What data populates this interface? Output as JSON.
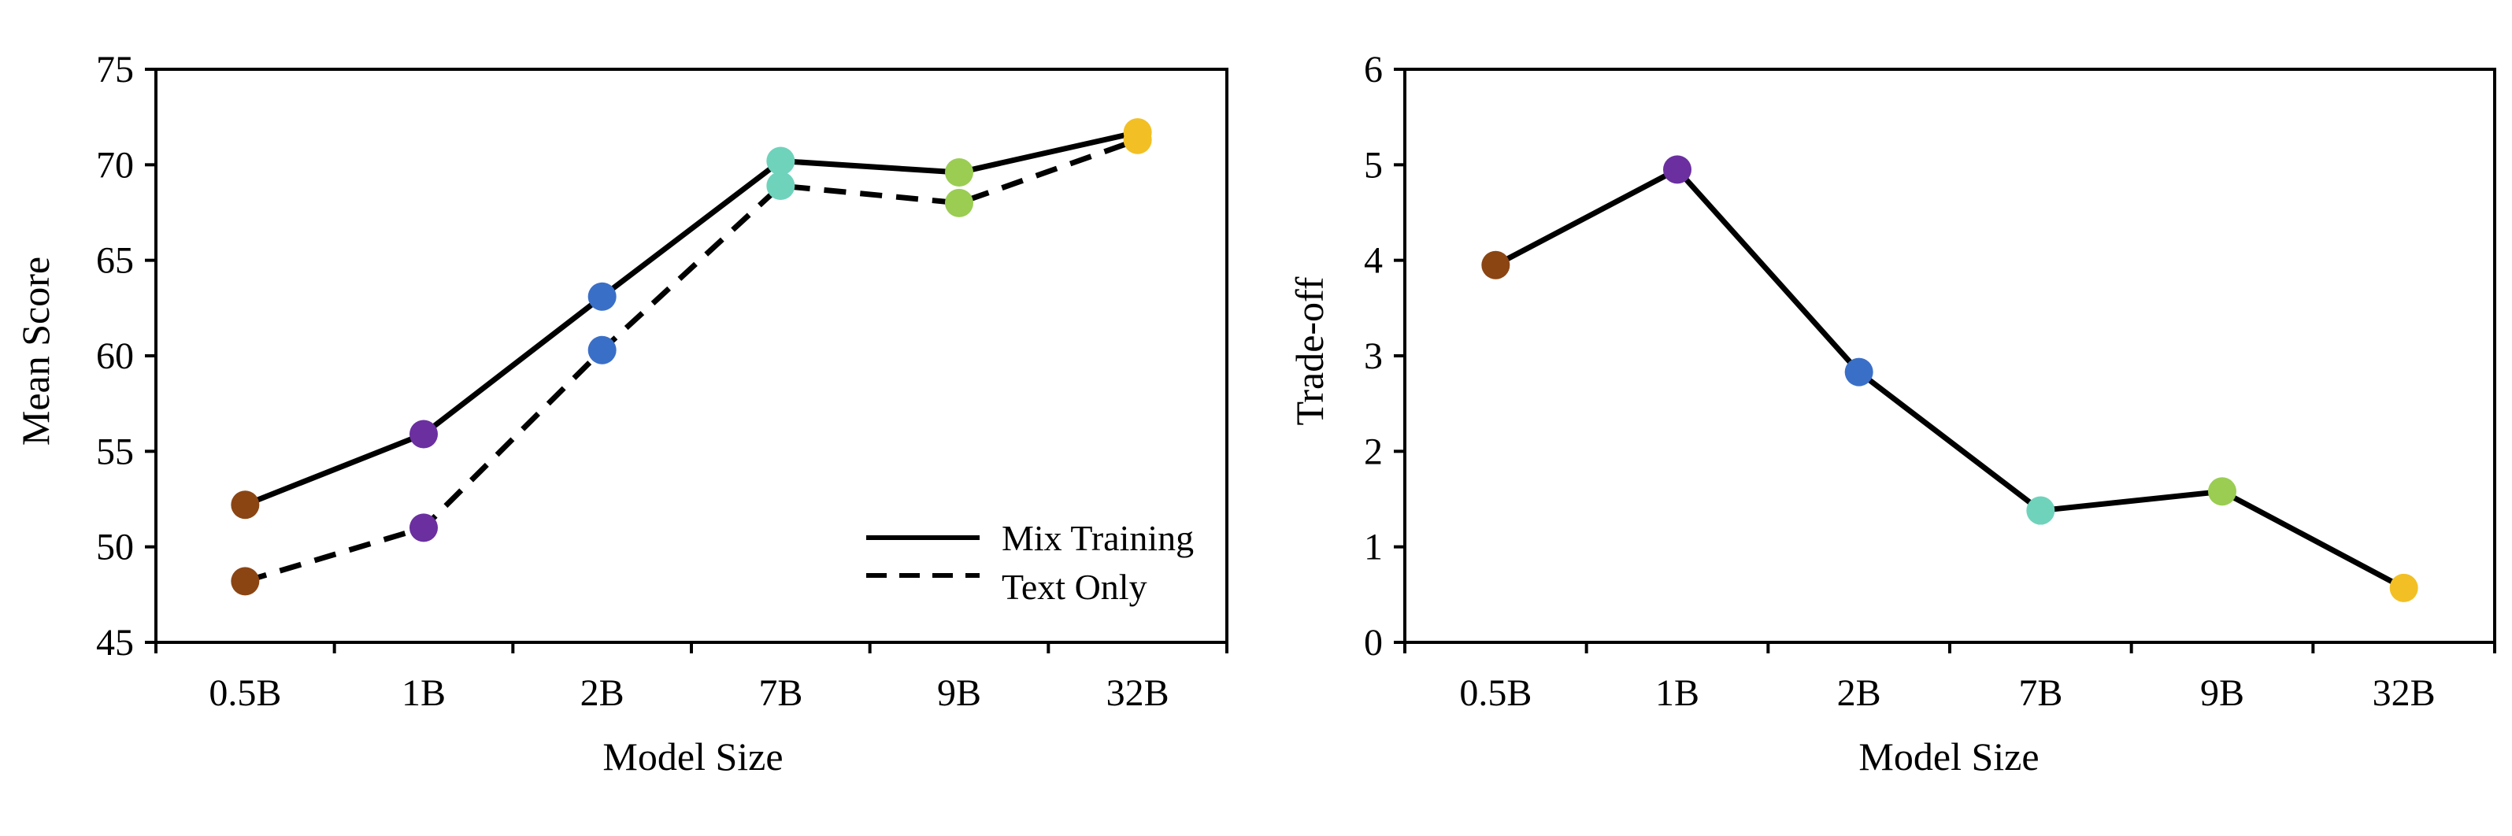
{
  "colors": {
    "category_colors": [
      "#8B4513",
      "#6B2FA0",
      "#3A6FC8",
      "#6FD3BC",
      "#9ACD52",
      "#F2C025"
    ],
    "line": "#000000"
  },
  "chart_data": [
    {
      "type": "line",
      "categories": [
        "0.5B",
        "1B",
        "2B",
        "7B",
        "9B",
        "32B"
      ],
      "xlabel": "Model Size",
      "ylabel": "Mean Score",
      "ylim": [
        45,
        75
      ],
      "yticks": [
        "45",
        "50",
        "55",
        "60",
        "65",
        "70",
        "75"
      ],
      "grid": false,
      "legend_position": "bottom-right",
      "series": [
        {
          "name": "Mix Training",
          "style": "solid",
          "values": [
            52.2,
            55.9,
            63.1,
            70.2,
            69.6,
            71.7
          ]
        },
        {
          "name": "Text Only",
          "style": "dashed",
          "values": [
            48.2,
            51.0,
            60.3,
            68.9,
            68.0,
            71.3
          ]
        }
      ]
    },
    {
      "type": "line",
      "categories": [
        "0.5B",
        "1B",
        "2B",
        "7B",
        "9B",
        "32B"
      ],
      "xlabel": "Model Size",
      "ylabel": "Trade-off",
      "ylim": [
        0,
        6
      ],
      "yticks": [
        "0",
        "1",
        "2",
        "3",
        "4",
        "5",
        "6"
      ],
      "grid": false,
      "series": [
        {
          "style": "solid",
          "values": [
            3.95,
            4.95,
            2.83,
            1.38,
            1.58,
            0.57
          ]
        }
      ]
    }
  ]
}
